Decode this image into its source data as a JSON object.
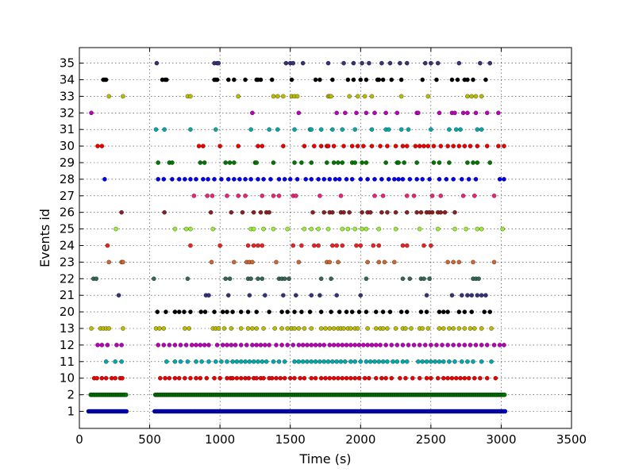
{
  "chart_data": {
    "type": "scatter",
    "title": "",
    "xlabel": "Time (s)",
    "ylabel": "Events id",
    "xlim": [
      0,
      3500
    ],
    "xticks": [
      0,
      500,
      1000,
      1500,
      2000,
      2500,
      3000,
      3500
    ],
    "grid": true,
    "categories": [
      "1",
      "2",
      "10",
      "11",
      "12",
      "13",
      "20",
      "21",
      "22",
      "23",
      "24",
      "25",
      "26",
      "27",
      "28",
      "29",
      "30",
      "31",
      "32",
      "33",
      "34",
      "35"
    ],
    "series": [
      {
        "id": "1",
        "color": "#0000cc",
        "dense": true,
        "segments": [
          [
            65,
            335
          ],
          [
            535,
            3030
          ]
        ],
        "step": 9
      },
      {
        "id": "2",
        "color": "#007700",
        "dense": true,
        "segments": [
          [
            80,
            335
          ],
          [
            540,
            3030
          ]
        ],
        "step": 9
      },
      {
        "id": "10",
        "color": "#ee0000",
        "x": [
          105,
          125,
          160,
          190,
          230,
          255,
          290,
          305,
          575,
          610,
          640,
          680,
          710,
          750,
          790,
          830,
          860,
          905,
          960,
          1000,
          1050,
          1075,
          1090,
          1120,
          1150,
          1180,
          1205,
          1240,
          1260,
          1290,
          1310,
          1350,
          1370,
          1400,
          1430,
          1460,
          1500,
          1530,
          1570,
          1600,
          1650,
          1680,
          1720,
          1750,
          1780,
          1810,
          1840,
          1870,
          1900,
          1930,
          1960,
          1990,
          2030,
          2060,
          2110,
          2150,
          2180,
          2220,
          2280,
          2320,
          2370,
          2420,
          2470,
          2500,
          2550,
          2590,
          2620,
          2650,
          2680,
          2710,
          2740,
          2770,
          2810,
          2850,
          2900,
          2960
        ]
      },
      {
        "id": "11",
        "color": "#00aaaa",
        "x": [
          190,
          255,
          300,
          620,
          680,
          720,
          770,
          830,
          870,
          920,
          970,
          1010,
          1050,
          1090,
          1120,
          1150,
          1180,
          1210,
          1240,
          1270,
          1300,
          1330,
          1380,
          1420,
          1460,
          1530,
          1560,
          1590,
          1620,
          1650,
          1680,
          1710,
          1740,
          1770,
          1800,
          1830,
          1860,
          1890,
          1930,
          1960,
          2000,
          2040,
          2070,
          2100,
          2130,
          2160,
          2190,
          2230,
          2260,
          2300,
          2330,
          2410,
          2440,
          2470,
          2500,
          2530,
          2560,
          2590,
          2630,
          2670,
          2720,
          2760,
          2800,
          2860,
          2930
        ]
      },
      {
        "id": "12",
        "color": "#bb00bb",
        "x": [
          130,
          160,
          200,
          265,
          300,
          560,
          600,
          640,
          680,
          720,
          760,
          800,
          830,
          860,
          890,
          920,
          980,
          1020,
          1050,
          1080,
          1110,
          1150,
          1190,
          1230,
          1260,
          1290,
          1320,
          1350,
          1400,
          1440,
          1480,
          1520,
          1560,
          1590,
          1620,
          1650,
          1680,
          1710,
          1740,
          1780,
          1810,
          1840,
          1870,
          1900,
          1930,
          1960,
          1990,
          2020,
          2050,
          2080,
          2110,
          2140,
          2180,
          2220,
          2260,
          2300,
          2340,
          2380,
          2420,
          2460,
          2500,
          2540,
          2580,
          2620,
          2660,
          2700,
          2740,
          2780,
          2820,
          2860,
          2900,
          2950,
          2990,
          3020
        ]
      },
      {
        "id": "13",
        "color": "#bbbb00",
        "x": [
          85,
          150,
          170,
          190,
          210,
          310,
          545,
          570,
          600,
          750,
          780,
          950,
          970,
          990,
          1030,
          1080,
          1150,
          1200,
          1230,
          1260,
          1310,
          1390,
          1440,
          1480,
          1510,
          1530,
          1560,
          1600,
          1650,
          1720,
          1750,
          1780,
          1810,
          1840,
          1860,
          1880,
          1910,
          1930,
          1960,
          1980,
          2050,
          2110,
          2140,
          2160,
          2190,
          2250,
          2300,
          2320,
          2360,
          2420,
          2440,
          2480,
          2560,
          2590,
          2630,
          2660,
          2700,
          2740,
          2780,
          2810,
          2860,
          2930
        ]
      },
      {
        "id": "20",
        "color": "#000000",
        "x": [
          555,
          615,
          680,
          710,
          745,
          790,
          865,
          895,
          960,
          1020,
          1050,
          1090,
          1150,
          1200,
          1260,
          1350,
          1440,
          1480,
          1530,
          1580,
          1640,
          1720,
          1790,
          1850,
          1900,
          1940,
          1990,
          2040,
          2110,
          2160,
          2210,
          2290,
          2330,
          2430,
          2470,
          2560,
          2590,
          2620,
          2700,
          2740,
          2790,
          2880,
          2920
        ]
      },
      {
        "id": "21",
        "color": "#333377",
        "x": [
          280,
          900,
          920,
          1060,
          1210,
          1320,
          1450,
          1540,
          1650,
          1710,
          1830,
          2000,
          2470,
          2650,
          2720,
          2760,
          2790,
          2830,
          2860,
          2890
        ]
      },
      {
        "id": "22",
        "color": "#336655",
        "x": [
          100,
          120,
          530,
          770,
          1040,
          1070,
          1200,
          1220,
          1270,
          1300,
          1420,
          1440,
          1460,
          1490,
          1720,
          1790,
          2040,
          2300,
          2350,
          2430,
          2450,
          2490,
          2800,
          2820,
          2840
        ]
      },
      {
        "id": "23",
        "color": "#cc6633",
        "x": [
          210,
          300,
          310,
          940,
          1100,
          1190,
          1210,
          1230,
          1400,
          1560,
          1760,
          1780,
          1840,
          2050,
          2130,
          2170,
          2240,
          2620,
          2660,
          2700,
          2800,
          2950
        ]
      },
      {
        "id": "24",
        "color": "#ee2222",
        "x": [
          200,
          790,
          1000,
          1200,
          1240,
          1270,
          1300,
          1520,
          1580,
          1670,
          1700,
          1800,
          1830,
          1870,
          1970,
          2000,
          2090,
          2130,
          2300,
          2330,
          2450,
          2500
        ]
      },
      {
        "id": "25",
        "color": "#99ee33",
        "x": [
          260,
          680,
          760,
          790,
          950,
          1220,
          1240,
          1310,
          1380,
          1480,
          1600,
          1650,
          1700,
          1770,
          1870,
          1910,
          1960,
          2010,
          2040,
          2130,
          2250,
          2420,
          2550,
          2670,
          2750,
          2830,
          2860,
          3010
        ]
      },
      {
        "id": "26",
        "color": "#882222",
        "x": [
          300,
          605,
          935,
          1080,
          1160,
          1240,
          1290,
          1330,
          1350,
          1660,
          1740,
          1780,
          1800,
          1860,
          1880,
          1920,
          2010,
          2050,
          2070,
          2150,
          2190,
          2250,
          2330,
          2400,
          2430,
          2470,
          2490,
          2510,
          2550,
          2570,
          2600,
          2670
        ]
      },
      {
        "id": "27",
        "color": "#ee2277",
        "x": [
          815,
          910,
          945,
          1050,
          1130,
          1180,
          1300,
          1380,
          1420,
          1520,
          1540,
          1710,
          1860,
          2100,
          2160,
          2330,
          2380,
          2510,
          2570,
          2730,
          2810,
          2950
        ]
      },
      {
        "id": "28",
        "color": "#0000ee",
        "x": [
          180,
          560,
          600,
          660,
          710,
          750,
          790,
          830,
          880,
          915,
          960,
          1010,
          1060,
          1100,
          1140,
          1180,
          1220,
          1270,
          1310,
          1360,
          1420,
          1460,
          1500,
          1550,
          1610,
          1650,
          1700,
          1740,
          1780,
          1820,
          1850,
          1900,
          1940,
          2000,
          2050,
          2100,
          2150,
          2200,
          2240,
          2270,
          2300,
          2350,
          2400,
          2440,
          2490,
          2560,
          2610,
          2660,
          2720,
          2770,
          2820,
          2990,
          3020
        ]
      },
      {
        "id": "29",
        "color": "#007700",
        "x": [
          560,
          640,
          660,
          860,
          890,
          1040,
          1070,
          1100,
          1250,
          1260,
          1380,
          1530,
          1580,
          1650,
          1760,
          1810,
          1840,
          1870,
          1940,
          1960,
          2010,
          2040,
          2180,
          2260,
          2270,
          2310,
          2400,
          2520,
          2560,
          2630,
          2760,
          2800,
          2830,
          2920
        ]
      },
      {
        "id": "30",
        "color": "#ee0000",
        "x": [
          130,
          160,
          850,
          880,
          1000,
          1130,
          1270,
          1300,
          1450,
          1600,
          1670,
          1720,
          1760,
          1770,
          1810,
          1880,
          1940,
          1980,
          2020,
          2080,
          2140,
          2190,
          2250,
          2300,
          2330,
          2390,
          2420,
          2450,
          2480,
          2520,
          2570,
          2620,
          2660,
          2700,
          2740,
          2780,
          2830,
          2900,
          2980,
          3020
        ]
      },
      {
        "id": "31",
        "color": "#00aaaa",
        "x": [
          545,
          605,
          790,
          970,
          1220,
          1350,
          1410,
          1530,
          1640,
          1650,
          1720,
          1800,
          1870,
          1960,
          2080,
          2180,
          2200,
          2290,
          2340,
          2500,
          2630,
          2680,
          2710,
          2830,
          2860
        ]
      },
      {
        "id": "32",
        "color": "#bb00bb",
        "x": [
          85,
          1230,
          1560,
          1830,
          1890,
          1970,
          2040,
          2100,
          2180,
          2260,
          2400,
          2410,
          2560,
          2650,
          2670,
          2730,
          2760,
          2820,
          2900,
          2980
        ]
      },
      {
        "id": "33",
        "color": "#bbbb00",
        "x": [
          210,
          310,
          770,
          790,
          1130,
          1380,
          1410,
          1450,
          1510,
          1530,
          1550,
          1770,
          1780,
          1790,
          1920,
          1980,
          2030,
          2080,
          2290,
          2480,
          2760,
          2790,
          2820,
          2860
        ]
      },
      {
        "id": "34",
        "color": "#000000",
        "x": [
          170,
          180,
          190,
          590,
          610,
          620,
          960,
          970,
          980,
          1060,
          1100,
          1180,
          1260,
          1270,
          1290,
          1370,
          1510,
          1680,
          1710,
          1800,
          1910,
          1950,
          2000,
          2040,
          2120,
          2130,
          2160,
          2220,
          2290,
          2440,
          2540,
          2650,
          2690,
          2740,
          2760,
          2800,
          2890
        ]
      },
      {
        "id": "35",
        "color": "#333377",
        "x": [
          550,
          960,
          980,
          990,
          1470,
          1500,
          1520,
          1590,
          1770,
          1880,
          1950,
          2010,
          2060,
          2150,
          2210,
          2280,
          2330,
          2460,
          2500,
          2550,
          2700,
          2850,
          2920
        ]
      }
    ]
  }
}
